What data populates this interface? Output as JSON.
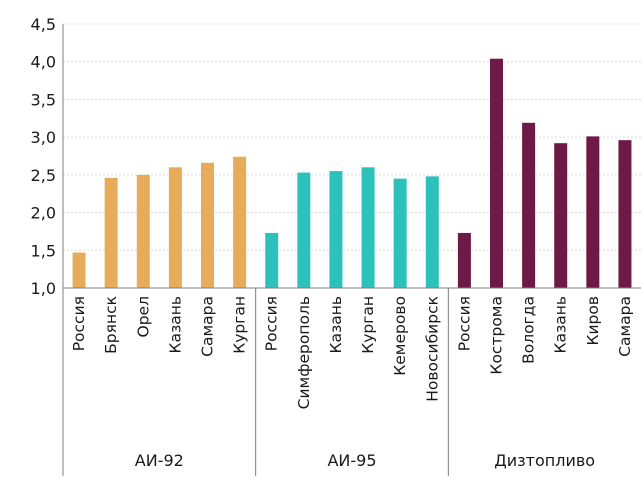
{
  "chart_data": {
    "type": "bar",
    "ylim": [
      1.0,
      4.5
    ],
    "yticks": [
      "1,0",
      "1,5",
      "2,0",
      "2,5",
      "3,0",
      "3,5",
      "4,0",
      "4,5"
    ],
    "grid": true,
    "colors": {
      "АИ-92": "#e8ab5a",
      "АИ-95": "#2cc1bb",
      "Дизтопливо": "#6d1a47"
    },
    "groups": [
      {
        "name": "АИ-92",
        "categories": [
          "Россия",
          "Брянск",
          "Орел",
          "Казань",
          "Самара",
          "Курган"
        ],
        "values": [
          1.47,
          2.46,
          2.5,
          2.6,
          2.66,
          2.74
        ]
      },
      {
        "name": "АИ-95",
        "categories": [
          "Россия",
          "Симферополь",
          "Казань",
          "Курган",
          "Кемерово",
          "Новосибирск"
        ],
        "values": [
          1.73,
          2.53,
          2.55,
          2.6,
          2.45,
          2.48
        ]
      },
      {
        "name": "Дизтопливо",
        "categories": [
          "Россия",
          "Кострома",
          "Вологда",
          "Казань",
          "Киров",
          "Самара"
        ],
        "values": [
          1.73,
          4.04,
          3.19,
          2.92,
          3.01,
          2.96
        ]
      }
    ]
  }
}
